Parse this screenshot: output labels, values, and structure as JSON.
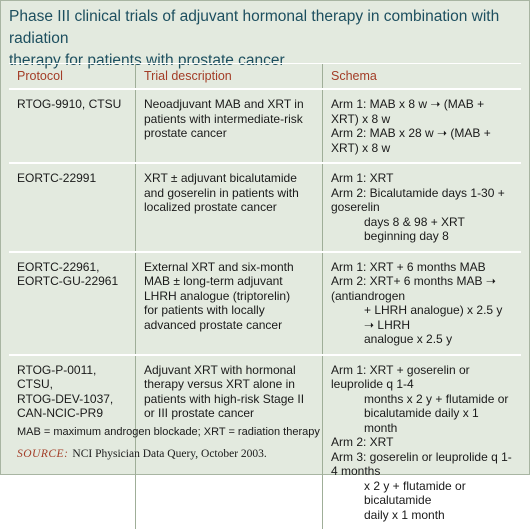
{
  "title": [
    "Phase III clinical trials of adjuvant hormonal therapy in combination with radiation",
    "therapy for patients with prostate cancer"
  ],
  "table": {
    "headers": [
      "Protocol",
      "Trial description",
      "Schema"
    ],
    "rows": [
      {
        "protocol": [
          "RTOG-9910, CTSU"
        ],
        "description": [
          "Neoadjuvant MAB and XRT in",
          "patients with intermediate-risk",
          "prostate cancer"
        ],
        "schema": [
          [
            "Arm 1: MAB x 8 w ➝ (MAB + XRT) x 8 w"
          ],
          [
            "Arm 2: MAB x 28 w ➝ (MAB + XRT) x 8 w"
          ]
        ]
      },
      {
        "protocol": [
          "EORTC-22991"
        ],
        "description": [
          "XRT ± adjuvant bicalutamide",
          "and goserelin in patients with",
          "localized prostate cancer"
        ],
        "schema": [
          [
            "Arm 1: XRT"
          ],
          [
            "Arm 2: Bicalutamide days 1-30 + goserelin",
            "days 8 & 98 + XRT beginning day 8"
          ]
        ]
      },
      {
        "protocol": [
          "EORTC-22961,",
          "EORTC-GU-22961"
        ],
        "description": [
          "External XRT and six-month",
          "MAB ± long-term adjuvant",
          "LHRH analogue (triptorelin)",
          "for patients with locally",
          "advanced prostate cancer"
        ],
        "schema": [
          [
            "Arm 1: XRT + 6 months MAB"
          ],
          [
            "Arm 2: XRT+ 6 months MAB ➝ (antiandrogen",
            "+ LHRH analogue) x  2.5 y ➝ LHRH",
            "analogue x 2.5 y"
          ]
        ]
      },
      {
        "protocol": [
          "RTOG-P-0011, CTSU,",
          "RTOG-DEV-1037,",
          "CAN-NCIC-PR9"
        ],
        "description": [
          "Adjuvant XRT with hormonal",
          "therapy versus XRT alone in",
          "patients with high-risk Stage II",
          "or III prostate cancer"
        ],
        "schema": [
          [
            "Arm 1: XRT + goserelin or leuprolide q 1-4",
            "months x 2 y + flutamide or",
            "bicalutamide daily x 1 month"
          ],
          [
            "Arm 2: XRT"
          ],
          [
            "Arm 3: goserelin or leuprolide q 1-4  months",
            "x 2 y + flutamide or bicalutamide",
            "daily x 1 month"
          ]
        ]
      }
    ]
  },
  "footnote": "MAB = maximum androgen blockade; XRT = radiation therapy",
  "source": {
    "label": "SOURCE:",
    "text": "NCI Physician Data Query, October 2003."
  }
}
